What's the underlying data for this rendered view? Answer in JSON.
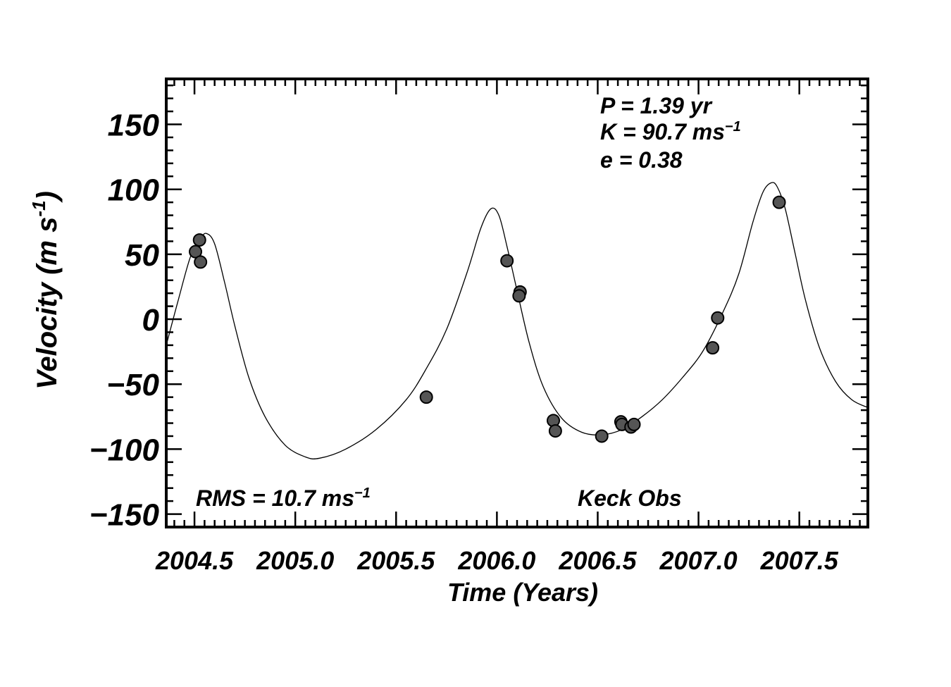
{
  "chart_data": {
    "type": "scatter",
    "xlabel": "Time  (Years)",
    "ylabel": "Velocity  (m s",
    "ylabel_sup": "-1",
    "ylabel_close": ")",
    "xlim": [
      2004.36,
      2007.84
    ],
    "ylim": [
      -160,
      185
    ],
    "x_ticks": [
      2004.5,
      2005.0,
      2005.5,
      2006.0,
      2006.5,
      2007.0,
      2007.5
    ],
    "x_tick_labels": [
      "2004.5",
      "2005.0",
      "2005.5",
      "2006.0",
      "2006.5",
      "2007.0",
      "2007.5"
    ],
    "y_ticks": [
      -150,
      -100,
      -50,
      0,
      50,
      100,
      150
    ],
    "y_tick_labels": [
      "−150",
      "−100",
      "−50",
      "0",
      "50",
      "100",
      "150"
    ],
    "annotations": {
      "period": "P = 1.39 yr",
      "amplitude": "K = 90.7 ms",
      "amplitude_sup": "−1",
      "eccentricity": "e = 0.38",
      "rms": "RMS = 10.7 ms",
      "rms_sup": "−1",
      "observatory": "Keck Obs"
    },
    "fit": {
      "period": 1.39,
      "K": 90.7,
      "e": 0.38
    },
    "points": [
      {
        "x": 2004.505,
        "y": 52
      },
      {
        "x": 2004.525,
        "y": 61
      },
      {
        "x": 2004.53,
        "y": 44
      },
      {
        "x": 2005.65,
        "y": -60
      },
      {
        "x": 2006.05,
        "y": 45
      },
      {
        "x": 2006.115,
        "y": 21
      },
      {
        "x": 2006.11,
        "y": 18
      },
      {
        "x": 2006.28,
        "y": -78
      },
      {
        "x": 2006.29,
        "y": -86
      },
      {
        "x": 2006.52,
        "y": -90
      },
      {
        "x": 2006.615,
        "y": -79
      },
      {
        "x": 2006.62,
        "y": -81
      },
      {
        "x": 2006.665,
        "y": -83
      },
      {
        "x": 2006.68,
        "y": -81
      },
      {
        "x": 2007.07,
        "y": -22
      },
      {
        "x": 2007.095,
        "y": 1
      },
      {
        "x": 2007.4,
        "y": 90
      }
    ],
    "curve": [
      {
        "x": 2004.36,
        "y": -20
      },
      {
        "x": 2004.42,
        "y": 15
      },
      {
        "x": 2004.48,
        "y": 48
      },
      {
        "x": 2004.53,
        "y": 62
      },
      {
        "x": 2004.56,
        "y": 66
      },
      {
        "x": 2004.6,
        "y": 58
      },
      {
        "x": 2004.65,
        "y": 28
      },
      {
        "x": 2004.7,
        "y": -5
      },
      {
        "x": 2004.77,
        "y": -45
      },
      {
        "x": 2004.85,
        "y": -75
      },
      {
        "x": 2004.95,
        "y": -97
      },
      {
        "x": 2005.05,
        "y": -106
      },
      {
        "x": 2005.12,
        "y": -107
      },
      {
        "x": 2005.25,
        "y": -100
      },
      {
        "x": 2005.4,
        "y": -85
      },
      {
        "x": 2005.55,
        "y": -62
      },
      {
        "x": 2005.65,
        "y": -38
      },
      {
        "x": 2005.75,
        "y": -8
      },
      {
        "x": 2005.85,
        "y": 35
      },
      {
        "x": 2005.92,
        "y": 70
      },
      {
        "x": 2005.97,
        "y": 85
      },
      {
        "x": 2006.01,
        "y": 80
      },
      {
        "x": 2006.05,
        "y": 56
      },
      {
        "x": 2006.1,
        "y": 22
      },
      {
        "x": 2006.16,
        "y": -18
      },
      {
        "x": 2006.23,
        "y": -52
      },
      {
        "x": 2006.32,
        "y": -76
      },
      {
        "x": 2006.42,
        "y": -87
      },
      {
        "x": 2006.52,
        "y": -89
      },
      {
        "x": 2006.62,
        "y": -85
      },
      {
        "x": 2006.72,
        "y": -75
      },
      {
        "x": 2006.82,
        "y": -62
      },
      {
        "x": 2006.92,
        "y": -45
      },
      {
        "x": 2007.02,
        "y": -25
      },
      {
        "x": 2007.12,
        "y": 5
      },
      {
        "x": 2007.2,
        "y": 35
      },
      {
        "x": 2007.27,
        "y": 75
      },
      {
        "x": 2007.32,
        "y": 98
      },
      {
        "x": 2007.36,
        "y": 105
      },
      {
        "x": 2007.39,
        "y": 102
      },
      {
        "x": 2007.43,
        "y": 85
      },
      {
        "x": 2007.48,
        "y": 50
      },
      {
        "x": 2007.53,
        "y": 15
      },
      {
        "x": 2007.6,
        "y": -22
      },
      {
        "x": 2007.68,
        "y": -48
      },
      {
        "x": 2007.76,
        "y": -62
      },
      {
        "x": 2007.84,
        "y": -68
      }
    ],
    "colors": {
      "point_fill": "#555555",
      "point_stroke": "#000000",
      "line": "#000000"
    }
  }
}
